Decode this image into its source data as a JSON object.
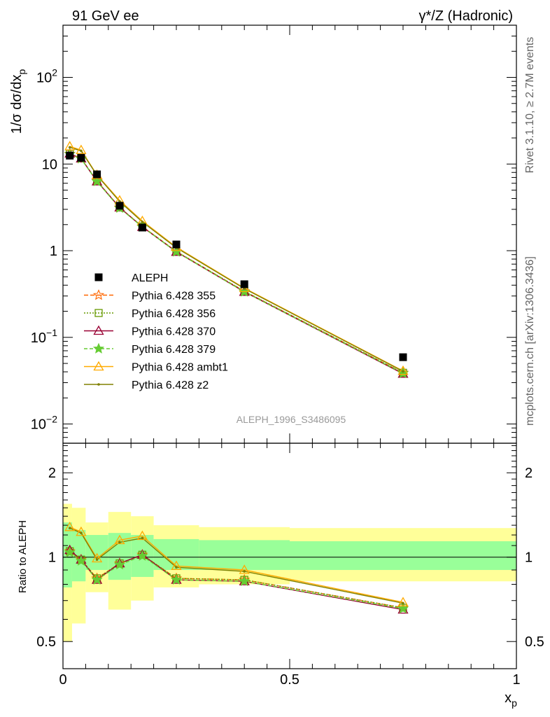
{
  "header": {
    "left": "91 GeV ee",
    "right": "γ*/Z (Hadronic)"
  },
  "side_labels": {
    "rivet": "Rivet 3.1.10, ≥ 2.7M events",
    "mcplots": "mcplots.cern.ch [arXiv:1306.3436]"
  },
  "analysis_label": "ALEPH_1996_S3486095",
  "chart_data": [
    {
      "type": "line",
      "panel": "main",
      "ylabel": "1/σ dσ/dx_p",
      "yscale": "log",
      "ylim": [
        0.006,
        400
      ],
      "xlim": [
        0,
        1.0
      ],
      "grid": false,
      "legend_position": "middle-left",
      "y_ticks": [
        {
          "value": 0.01,
          "base": "10",
          "exp": "−2"
        },
        {
          "value": 0.1,
          "base": "10",
          "exp": "−1"
        },
        {
          "value": 1,
          "base": "1",
          "exp": ""
        },
        {
          "value": 10,
          "base": "10",
          "exp": ""
        },
        {
          "value": 100,
          "base": "10",
          "exp": "2"
        }
      ],
      "data": {
        "name": "ALEPH",
        "x": [
          0.015,
          0.04,
          0.075,
          0.125,
          0.175,
          0.25,
          0.4,
          0.75
        ],
        "y": [
          12.5,
          11.8,
          7.6,
          3.3,
          1.85,
          1.18,
          0.41,
          0.059
        ]
      },
      "x": [
        0.015,
        0.04,
        0.075,
        0.125,
        0.175,
        0.25,
        0.4,
        0.75
      ],
      "series": [
        {
          "name": "Pythia 6.428 355",
          "color": "#ff6600",
          "dash": "6,3",
          "marker": "star-open",
          "values": [
            13.1,
            11.6,
            6.4,
            3.15,
            1.9,
            0.98,
            0.34,
            0.039
          ]
        },
        {
          "name": "Pythia 6.428 356",
          "color": "#669900",
          "dash": "2,2",
          "marker": "square-open",
          "values": [
            13.1,
            11.6,
            6.4,
            3.15,
            1.9,
            0.98,
            0.34,
            0.039
          ]
        },
        {
          "name": "Pythia 6.428 370",
          "color": "#990033",
          "dash": "",
          "marker": "triangle-open",
          "values": [
            13.2,
            11.6,
            6.3,
            3.15,
            1.88,
            0.97,
            0.335,
            0.038
          ]
        },
        {
          "name": "Pythia 6.428 379",
          "color": "#66cc33",
          "dash": "5,3",
          "marker": "star-filled",
          "values": [
            13.0,
            11.5,
            6.3,
            3.1,
            1.88,
            0.97,
            0.335,
            0.0385
          ]
        },
        {
          "name": "Pythia 6.428 ambt1",
          "color": "#ffaa00",
          "dash": "",
          "marker": "triangle-open",
          "values": [
            16.0,
            14.5,
            7.5,
            3.8,
            2.2,
            1.1,
            0.37,
            0.041
          ]
        },
        {
          "name": "Pythia 6.428 z2",
          "color": "#808000",
          "dash": "",
          "marker": "dot",
          "values": [
            15.6,
            14.2,
            7.4,
            3.7,
            2.15,
            1.08,
            0.365,
            0.0405
          ]
        }
      ]
    },
    {
      "type": "line",
      "panel": "ratio",
      "ylabel": "Ratio to ALEPH",
      "yscale": "log",
      "ylim": [
        0.4,
        2.55
      ],
      "xlabel": "x_p",
      "xlim": [
        0,
        1.0
      ],
      "grid": false,
      "y_ticks": [
        {
          "value": 0.5,
          "label": "0.5"
        },
        {
          "value": 1,
          "label": "1"
        },
        {
          "value": 2,
          "label": "2"
        }
      ],
      "x_ticks": [
        {
          "value": 0,
          "label": "0"
        },
        {
          "value": 0.5,
          "label": "0.5"
        },
        {
          "value": 1,
          "label": "1"
        }
      ],
      "bins": [
        {
          "x0": 0.0,
          "x1": 0.02,
          "green": [
            0.78,
            1.33
          ],
          "yellow": [
            0.5,
            1.55
          ]
        },
        {
          "x0": 0.02,
          "x1": 0.05,
          "green": [
            0.82,
            1.25
          ],
          "yellow": [
            0.58,
            1.5
          ]
        },
        {
          "x0": 0.05,
          "x1": 0.1,
          "green": [
            0.9,
            1.2
          ],
          "yellow": [
            0.75,
            1.33
          ]
        },
        {
          "x0": 0.1,
          "x1": 0.15,
          "green": [
            0.83,
            1.22
          ],
          "yellow": [
            0.65,
            1.45
          ]
        },
        {
          "x0": 0.15,
          "x1": 0.2,
          "green": [
            0.85,
            1.2
          ],
          "yellow": [
            0.7,
            1.4
          ]
        },
        {
          "x0": 0.2,
          "x1": 0.3,
          "green": [
            0.9,
            1.16
          ],
          "yellow": [
            0.78,
            1.3
          ]
        },
        {
          "x0": 0.3,
          "x1": 0.5,
          "green": [
            0.9,
            1.15
          ],
          "yellow": [
            0.8,
            1.28
          ]
        },
        {
          "x0": 0.5,
          "x1": 1.0,
          "green": [
            0.9,
            1.14
          ],
          "yellow": [
            0.82,
            1.27
          ]
        }
      ],
      "x": [
        0.015,
        0.04,
        0.075,
        0.125,
        0.175,
        0.25,
        0.4,
        0.75
      ],
      "series": [
        {
          "name": "Pythia 6.428 355",
          "values": [
            1.05,
            0.98,
            0.84,
            0.95,
            1.02,
            0.84,
            0.83,
            0.66
          ]
        },
        {
          "name": "Pythia 6.428 356",
          "values": [
            1.05,
            0.98,
            0.84,
            0.95,
            1.02,
            0.84,
            0.83,
            0.66
          ]
        },
        {
          "name": "Pythia 6.428 370",
          "values": [
            1.06,
            0.98,
            0.83,
            0.95,
            1.02,
            0.83,
            0.82,
            0.65
          ]
        },
        {
          "name": "Pythia 6.428 379",
          "values": [
            1.04,
            0.97,
            0.83,
            0.94,
            1.01,
            0.83,
            0.82,
            0.655
          ]
        },
        {
          "name": "Pythia 6.428 ambt1",
          "values": [
            1.28,
            1.23,
            0.99,
            1.15,
            1.19,
            0.93,
            0.9,
            0.69
          ]
        },
        {
          "name": "Pythia 6.428 z2",
          "values": [
            1.27,
            1.22,
            0.98,
            1.13,
            1.17,
            0.92,
            0.89,
            0.685
          ]
        }
      ]
    }
  ]
}
